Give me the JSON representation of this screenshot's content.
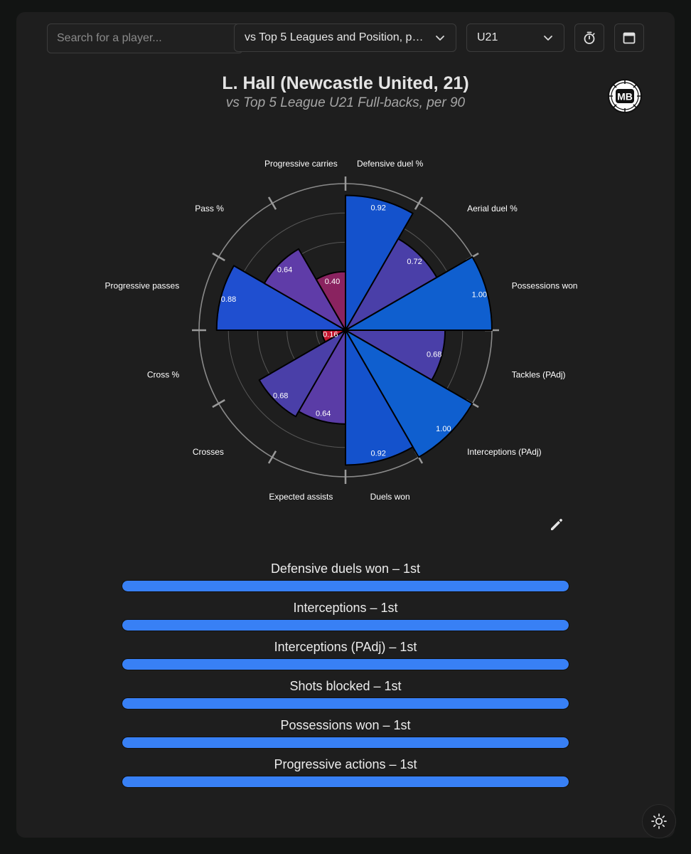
{
  "toolbar": {
    "search_placeholder": "Search for a player...",
    "comparison_value": "vs Top 5 Leagues and Position, per 90",
    "age_value": "U21"
  },
  "header": {
    "title": "L. Hall (Newcastle United, 21)",
    "subtitle": "vs Top 5 League U21 Full-backs, per 90",
    "logo_text": "MB"
  },
  "chart_data": {
    "type": "polar-bar",
    "title": "L. Hall (Newcastle United, 21)",
    "subtitle": "vs Top 5 League U21 Full-backs, per 90",
    "rlim": [
      0,
      1
    ],
    "grid": true,
    "categories": [
      "Defensive duel %",
      "Aerial duel %",
      "Possessions won",
      "Tackles (PAdj)",
      "Interceptions (PAdj)",
      "Duels won",
      "Expected assists",
      "Crosses",
      "Cross %",
      "Progressive passes",
      "Pass %",
      "Progressive carries"
    ],
    "values": [
      0.92,
      0.72,
      1.0,
      0.68,
      1.0,
      0.92,
      0.64,
      0.68,
      0.16,
      0.88,
      0.64,
      0.4
    ],
    "value_labels": [
      "0.92",
      "0.72",
      "1.00",
      "0.68",
      "1.00",
      "0.92",
      "0.64",
      "0.68",
      "0.16",
      "0.88",
      "0.64",
      "0.40"
    ],
    "colors": [
      "#1452cc",
      "#4a3fa8",
      "#0f5fcf",
      "#4a3fa8",
      "#0f5fcf",
      "#1452cc",
      "#5a3ca6",
      "#4a3fa8",
      "#c4162e",
      "#1f4fd0",
      "#5f3ca8",
      "#8a2360"
    ]
  },
  "rankings": [
    {
      "label": "Defensive duels won – 1st",
      "value": 1.0
    },
    {
      "label": "Interceptions – 1st",
      "value": 1.0
    },
    {
      "label": "Interceptions (PAdj) – 1st",
      "value": 1.0
    },
    {
      "label": "Shots blocked – 1st",
      "value": 1.0
    },
    {
      "label": "Possessions won – 1st",
      "value": 1.0
    },
    {
      "label": "Progressive actions – 1st",
      "value": 1.0
    }
  ]
}
